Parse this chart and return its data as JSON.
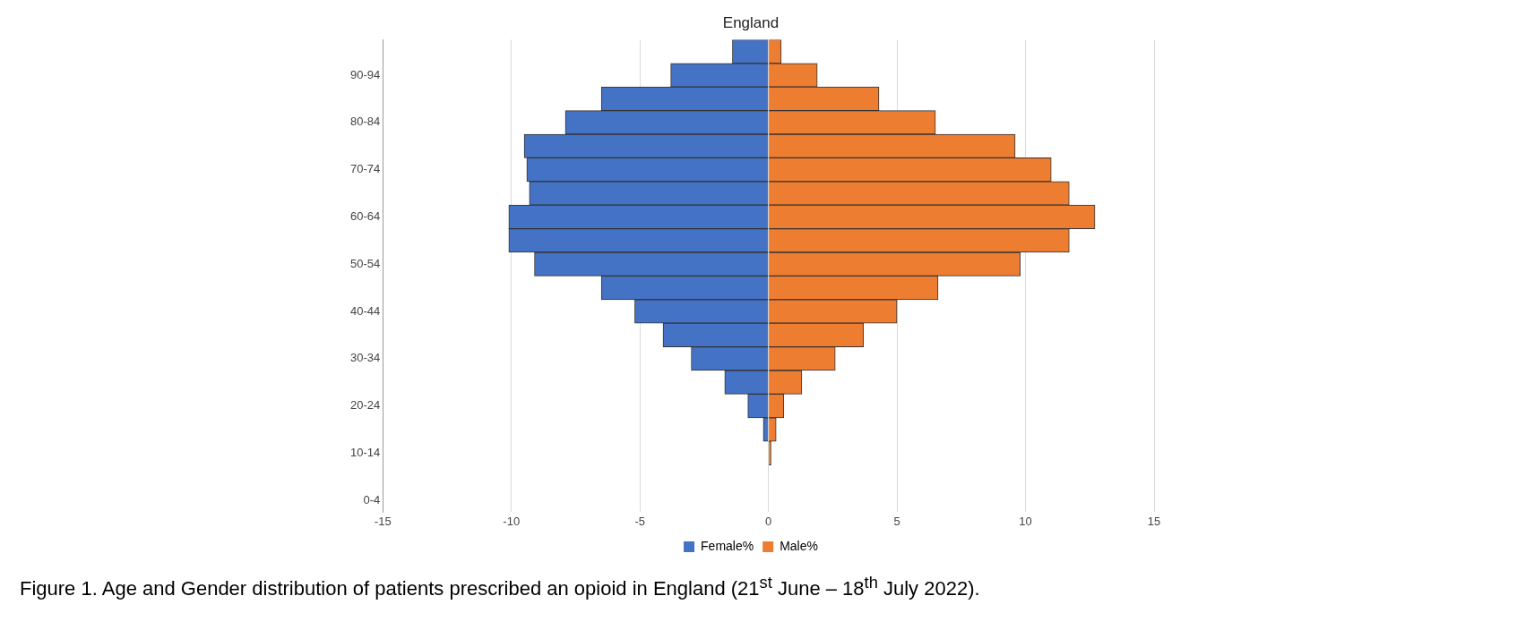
{
  "chart_data": {
    "type": "bar",
    "orientation": "horizontal",
    "stacked": true,
    "title": "England",
    "categories": [
      null,
      "90-94",
      null,
      "80-84",
      null,
      "70-74",
      null,
      "60-64",
      null,
      "50-54",
      null,
      "40-44",
      null,
      "30-34",
      null,
      "20-24",
      null,
      "10-14",
      null,
      "0-4"
    ],
    "series": [
      {
        "name": "Female%",
        "color": "#4472c4",
        "values": [
          -1.4,
          -3.8,
          -6.5,
          -7.9,
          -9.5,
          -9.4,
          -9.3,
          -10.1,
          -10.1,
          -9.1,
          -6.5,
          -5.2,
          -4.1,
          -3.0,
          -1.7,
          -0.8,
          -0.2,
          0,
          0,
          0
        ]
      },
      {
        "name": "Male%",
        "color": "#ed7d31",
        "values": [
          0.5,
          1.9,
          4.3,
          6.5,
          9.6,
          11.0,
          11.7,
          12.7,
          11.7,
          9.8,
          6.6,
          5.0,
          3.7,
          2.6,
          1.3,
          0.6,
          0.3,
          0.1,
          0,
          0
        ]
      }
    ],
    "xlim": [
      -15,
      15
    ],
    "xticks": [
      -15,
      -10,
      -5,
      0,
      5,
      10,
      15
    ],
    "grid": "x",
    "legend": "bottom",
    "annotations": [
      "Figure 1. Age and Gender distribution of patients prescribed an opioid in England (21$^{st}$ June – 18$^{th}$ July 2022)."
    ]
  }
}
